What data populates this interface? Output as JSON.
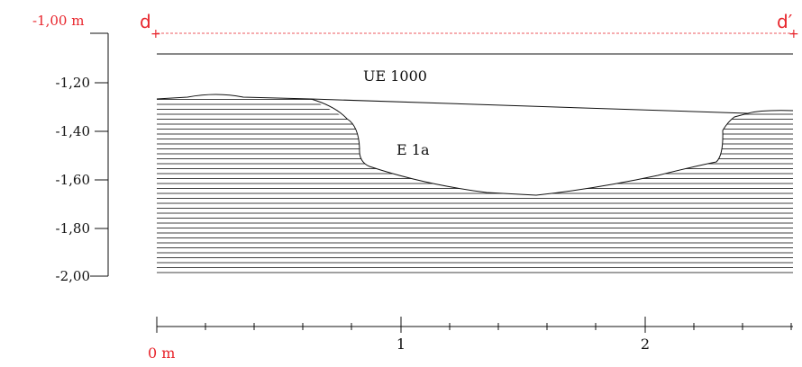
{
  "section": {
    "datum_label": "-1,00 m",
    "start_point_label": "d",
    "end_point_label": "d′",
    "marker_glyph": "+",
    "layer_label": "UE 1000",
    "feature_label": "E 1a",
    "depth_labels": [
      "-1,20",
      "-1,40",
      "-1,60",
      "-1,80",
      "-2,00"
    ],
    "scale_labels": [
      "0 m",
      "1",
      "2"
    ],
    "colors": {
      "survey_red": "#e8242b",
      "ink": "#111111"
    }
  }
}
